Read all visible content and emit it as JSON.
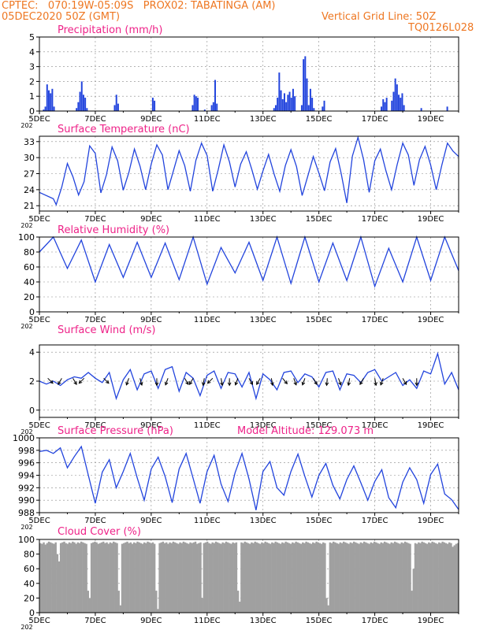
{
  "header": {
    "line1": "CPTEC:   070:19W-05:09S   PROX02: TABATINGA (AM)",
    "line2": "05DEC2020 50Z (GMT)",
    "grid_note": "Vertical Grid Line: 50Z",
    "code": "TQ0126L028"
  },
  "colors": {
    "title": "#ee2288",
    "header": "#ee7722",
    "line": "#2244dd",
    "cloud": "#a0a0a0",
    "grid": "#888888"
  },
  "x_axis": {
    "tick_labels": [
      "5DEC",
      "7DEC",
      "9DEC",
      "11DEC",
      "13DEC",
      "15DEC",
      "17DEC",
      "19DEC"
    ],
    "stub_label": "202"
  },
  "chart_data": [
    {
      "type": "bar",
      "title": "Precipitation (mm/h)",
      "ylim": [
        0,
        5
      ],
      "yticks": [
        0,
        1,
        2,
        3,
        4,
        5
      ],
      "grid": true,
      "values": [
        0,
        0,
        0.1,
        0.3,
        1.8,
        1.4,
        1.2,
        1.5,
        0.3,
        0,
        0,
        0,
        0,
        0,
        0,
        0,
        0,
        0,
        0,
        0,
        0,
        0.2,
        0.6,
        1.3,
        2,
        1.1,
        0.9,
        0.2,
        0,
        0,
        0,
        0,
        0,
        0,
        0,
        0,
        0,
        0,
        0,
        0,
        0,
        0,
        0,
        0.4,
        1.1,
        0.5,
        0,
        0,
        0,
        0,
        0,
        0,
        0,
        0,
        0,
        0,
        0,
        0,
        0,
        0,
        0,
        0,
        0,
        0,
        0,
        0.9,
        0.7,
        0,
        0,
        0,
        0,
        0,
        0,
        0,
        0,
        0,
        0,
        0,
        0,
        0,
        0,
        0,
        0,
        0,
        0,
        0,
        0,
        0,
        0.4,
        1.1,
        1.0,
        0.9,
        0,
        0,
        0,
        0.1,
        0,
        0,
        0,
        0.4,
        0.6,
        2.1,
        0.5,
        0,
        0,
        0,
        0,
        0,
        0,
        0,
        0,
        0,
        0,
        0,
        0,
        0,
        0,
        0,
        0,
        0,
        0,
        0,
        0,
        0,
        0,
        0,
        0,
        0,
        0,
        0,
        0,
        0,
        0,
        0,
        0,
        0.2,
        0.4,
        0.9,
        2.6,
        1.4,
        0.8,
        1.2,
        0.6,
        1.1,
        1.3,
        0.9,
        1.5,
        1.0,
        0,
        0,
        0,
        0.4,
        3.5,
        3.7,
        2.2,
        0.4,
        1.5,
        0.9,
        0.2,
        0,
        0,
        0,
        0,
        0.3,
        0.7,
        0,
        0,
        0,
        0,
        0,
        0,
        0,
        0,
        0,
        0,
        0,
        0,
        0,
        0,
        0,
        0,
        0,
        0,
        0,
        0,
        0,
        0,
        0,
        0,
        0,
        0,
        0,
        0,
        0,
        0,
        0,
        0,
        0.3,
        0.8,
        0.6,
        0.9,
        0,
        0,
        0.7,
        1.3,
        2.2,
        1.8,
        1.1,
        0.9,
        1.2,
        0.4,
        0,
        0,
        0,
        0,
        0,
        0,
        0,
        0,
        0,
        0.2,
        0,
        0,
        0,
        0,
        0,
        0,
        0,
        0,
        0,
        0,
        0,
        0,
        0,
        0,
        0.3,
        0,
        0,
        0,
        0,
        0,
        0
      ]
    },
    {
      "type": "line",
      "title": "Surface Temperature (nC)",
      "ylim": [
        20,
        34
      ],
      "yticks": [
        21,
        24,
        27,
        30,
        33
      ],
      "grid": true,
      "days": [
        0,
        0.5,
        0.6,
        0.8,
        1.0,
        1.2,
        1.4,
        1.6,
        1.8,
        2.0,
        2.2,
        2.4,
        2.6,
        2.8,
        3.0,
        3.2,
        3.4,
        3.6,
        3.8,
        4.0,
        4.2,
        4.4,
        4.6,
        4.8,
        5.0,
        5.2,
        5.4,
        5.6,
        5.8,
        6.0,
        6.2,
        6.4,
        6.6,
        6.8,
        7.0,
        7.2,
        7.4,
        7.6,
        7.8,
        8.0,
        8.2,
        8.4,
        8.6,
        8.8,
        9.0,
        9.2,
        9.4,
        9.6,
        9.8,
        10.0,
        10.2,
        10.4,
        10.6,
        10.8,
        11.0,
        11.2,
        11.4,
        11.6,
        11.8,
        12.0,
        12.2,
        12.4,
        12.6,
        12.8,
        13.0,
        13.2,
        13.4,
        13.6,
        13.8,
        14.0,
        14.2,
        14.4,
        14.6,
        14.8,
        15.0
      ],
      "values": [
        23.5,
        22.3,
        21.2,
        24.5,
        28.9,
        26.4,
        23.0,
        25.5,
        32.2,
        30.8,
        23.4,
        26.8,
        32.0,
        29.4,
        23.9,
        27.2,
        31.6,
        28.4,
        24.0,
        28.8,
        32.4,
        30.5,
        24.0,
        27.6,
        31.3,
        28.5,
        23.7,
        29.5,
        32.7,
        30.4,
        23.7,
        27.8,
        32.4,
        29.2,
        24.5,
        28.8,
        31.1,
        27.8,
        24.1,
        27.5,
        30.6,
        26.9,
        23.7,
        28.5,
        31.5,
        28.3,
        22.9,
        26.5,
        30.2,
        27.1,
        23.8,
        29.2,
        31.7,
        27.0,
        21.5,
        30.3,
        33.8,
        29.6,
        23.5,
        29.4,
        31.6,
        27.5,
        24.0,
        28.7,
        32.7,
        30.5,
        24.8,
        29.6,
        32.1,
        28.6,
        24.0,
        28.6,
        32.7,
        31.2,
        30.2
      ]
    },
    {
      "type": "line",
      "title": "Relative Humidity (%)",
      "ylim": [
        0,
        100
      ],
      "yticks": [
        0,
        20,
        40,
        60,
        80,
        100
      ],
      "grid": true,
      "days": [
        0,
        0.5,
        1.0,
        1.5,
        2.0,
        2.5,
        3.0,
        3.5,
        4.0,
        4.5,
        5.0,
        5.5,
        6.0,
        6.5,
        7.0,
        7.5,
        8.0,
        8.5,
        9.0,
        9.5,
        10.0,
        10.5,
        11.0,
        11.5,
        12.0,
        12.5,
        13.0,
        13.5,
        14.0,
        14.5,
        15.0
      ],
      "values": [
        80,
        100,
        58,
        96,
        40,
        90,
        46,
        93,
        46,
        92,
        43,
        100,
        37,
        86,
        52,
        93,
        42,
        100,
        38,
        100,
        40,
        92,
        42,
        100,
        34,
        85,
        40,
        100,
        42,
        100,
        55
      ]
    },
    {
      "type": "line",
      "title": "Surface Wind (m/s)",
      "ylim": [
        -0.5,
        4.5
      ],
      "yticks": [
        0,
        2,
        4
      ],
      "grid": true,
      "days": [
        0,
        0.25,
        0.5,
        0.75,
        1.0,
        1.25,
        1.5,
        1.75,
        2.0,
        2.25,
        2.5,
        2.75,
        3.0,
        3.25,
        3.5,
        3.75,
        4.0,
        4.25,
        4.5,
        4.75,
        5.0,
        5.25,
        5.5,
        5.75,
        6.0,
        6.25,
        6.5,
        6.75,
        7.0,
        7.25,
        7.5,
        7.75,
        8.0,
        8.25,
        8.5,
        8.75,
        9.0,
        9.25,
        9.5,
        9.75,
        10.0,
        10.25,
        10.5,
        10.75,
        11.0,
        11.25,
        11.5,
        11.75,
        12.0,
        12.25,
        12.5,
        12.75,
        13.0,
        13.25,
        13.5,
        13.75,
        14.0,
        14.25,
        14.5,
        14.75,
        15.0
      ],
      "values": [
        2.0,
        1.8,
        2.0,
        1.7,
        2.1,
        2.3,
        2.2,
        2.6,
        2.2,
        1.9,
        2.6,
        0.8,
        2.1,
        2.8,
        1.4,
        2.5,
        2.7,
        1.5,
        2.8,
        3.0,
        1.3,
        2.6,
        2.2,
        1.0,
        2.4,
        2.7,
        1.5,
        2.6,
        2.5,
        1.6,
        2.6,
        0.8,
        2.5,
        2.1,
        1.4,
        2.6,
        2.7,
        1.9,
        2.5,
        2.3,
        1.6,
        2.6,
        2.7,
        1.4,
        2.5,
        2.4,
        1.9,
        2.6,
        2.8,
        2.0,
        2.3,
        2.6,
        1.7,
        2.1,
        1.5,
        2.7,
        2.5,
        3.9,
        1.8,
        2.6,
        1.4
      ],
      "arrows": [
        [
          0.3,
          135
        ],
        [
          0.8,
          210
        ],
        [
          1.2,
          150
        ],
        [
          1.6,
          225
        ],
        [
          2.3,
          135
        ],
        [
          3.2,
          200
        ],
        [
          3.6,
          165
        ],
        [
          4.2,
          180
        ],
        [
          4.6,
          200
        ],
        [
          5.2,
          150
        ],
        [
          5.5,
          210
        ],
        [
          5.9,
          190
        ],
        [
          6.2,
          225
        ],
        [
          6.5,
          170
        ],
        [
          6.8,
          180
        ],
        [
          7.1,
          200
        ],
        [
          7.5,
          150
        ],
        [
          7.9,
          210
        ],
        [
          8.3,
          170
        ],
        [
          8.7,
          140
        ],
        [
          9.1,
          160
        ],
        [
          9.5,
          200
        ],
        [
          9.8,
          150
        ],
        [
          10.3,
          185
        ],
        [
          10.7,
          160
        ],
        [
          11.1,
          190
        ],
        [
          11.6,
          210
        ],
        [
          12.0,
          170
        ],
        [
          12.3,
          200
        ],
        [
          13.0,
          150
        ],
        [
          13.5,
          180
        ]
      ]
    },
    {
      "type": "line",
      "title": "Surface Pressure (hPa)",
      "subtitle": "Model Altitude: 129.073 m",
      "ylim": [
        988,
        1000
      ],
      "yticks": [
        988,
        990,
        992,
        994,
        996,
        998,
        1000
      ],
      "grid": true,
      "days": [
        0,
        0.25,
        0.5,
        0.75,
        1.0,
        1.25,
        1.5,
        1.75,
        2.0,
        2.25,
        2.5,
        2.75,
        3.0,
        3.25,
        3.5,
        3.75,
        4.0,
        4.25,
        4.5,
        4.75,
        5.0,
        5.25,
        5.5,
        5.75,
        6.0,
        6.25,
        6.5,
        6.75,
        7.0,
        7.25,
        7.5,
        7.75,
        8.0,
        8.25,
        8.5,
        8.75,
        9.0,
        9.25,
        9.5,
        9.75,
        10.0,
        10.25,
        10.5,
        10.75,
        11.0,
        11.25,
        11.5,
        11.75,
        12.0,
        12.25,
        12.5,
        12.75,
        13.0,
        13.25,
        13.5,
        13.75,
        14.0,
        14.25,
        14.5,
        14.75,
        15.0
      ],
      "values": [
        997.8,
        998.0,
        997.5,
        998.4,
        995.2,
        997.0,
        998.6,
        994.0,
        989.5,
        994.5,
        996.5,
        992.0,
        994.6,
        997.5,
        993.6,
        990.0,
        995.0,
        996.9,
        993.8,
        989.6,
        995.0,
        997.5,
        993.5,
        989.5,
        994.6,
        997.2,
        992.6,
        989.8,
        994.4,
        997.5,
        993.4,
        988.4,
        994.6,
        996.2,
        992.0,
        990.8,
        994.6,
        997.4,
        993.8,
        990.5,
        994.0,
        995.9,
        992.4,
        990.2,
        993.3,
        995.5,
        992.8,
        990.0,
        993.0,
        994.9,
        990.4,
        988.8,
        992.9,
        995.2,
        993.3,
        989.5,
        994.1,
        995.8,
        991.0,
        990.1,
        988.5
      ]
    },
    {
      "type": "bar",
      "title": "Cloud Cover (%)",
      "ylim": [
        0,
        100
      ],
      "yticks": [
        0,
        20,
        40,
        60,
        80,
        100
      ],
      "grid": true,
      "values": [
        95,
        94,
        96,
        93,
        95,
        97,
        96,
        95,
        94,
        96,
        80,
        70,
        95,
        96,
        97,
        95,
        94,
        96,
        95,
        97,
        96,
        94,
        96,
        95,
        97,
        96,
        95,
        94,
        30,
        20,
        95,
        96,
        97,
        96,
        94,
        95,
        96,
        97,
        95,
        96,
        94,
        96,
        95,
        97,
        96,
        95,
        30,
        10,
        94,
        95,
        96,
        97,
        95,
        96,
        94,
        96,
        95,
        97,
        96,
        95,
        94,
        96,
        95,
        97,
        96,
        95,
        96,
        94,
        30,
        5,
        95,
        96,
        97,
        95,
        96,
        94,
        96,
        95,
        97,
        96,
        95,
        94,
        96,
        95,
        97,
        96,
        95,
        94,
        96,
        95,
        96,
        97,
        94,
        95,
        96,
        20,
        95,
        96,
        97,
        95,
        94,
        96,
        95,
        97,
        96,
        95,
        94,
        96,
        95,
        97,
        96,
        95,
        94,
        96,
        95,
        96,
        30,
        15,
        96,
        95,
        97,
        96,
        95,
        94,
        96,
        95,
        97,
        96,
        95,
        94,
        96,
        95,
        97,
        96,
        95,
        94,
        96,
        95,
        97,
        96,
        95,
        94,
        96,
        95,
        97,
        96,
        95,
        94,
        96,
        95,
        97,
        96,
        95,
        94,
        96,
        95,
        97,
        96,
        95,
        94,
        96,
        95,
        97,
        96,
        95,
        94,
        96,
        95,
        20,
        10,
        96,
        95,
        97,
        96,
        95,
        94,
        96,
        95,
        97,
        96,
        95,
        94,
        96,
        95,
        97,
        96,
        95,
        94,
        96,
        95,
        97,
        96,
        95,
        94,
        96,
        95,
        97,
        96,
        95,
        94,
        96,
        95,
        97,
        96,
        95,
        94,
        96,
        95,
        97,
        96,
        95,
        94,
        96,
        95,
        97,
        96,
        95,
        94,
        30,
        60,
        95,
        94,
        96,
        95,
        97,
        96,
        95,
        94,
        96,
        95,
        97,
        96,
        95,
        94,
        96,
        95,
        97,
        96,
        95,
        94,
        96,
        95,
        90,
        92,
        94,
        95
      ]
    }
  ]
}
